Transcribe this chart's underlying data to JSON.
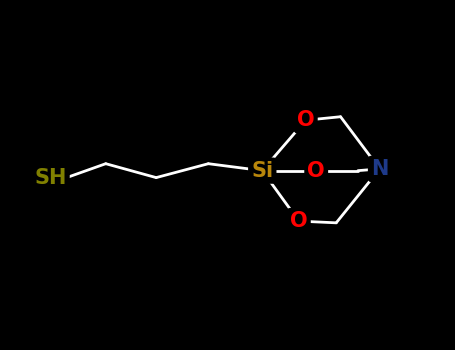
{
  "background_color": "#000000",
  "si_color": "#B8860B",
  "o_color": "#FF0000",
  "n_color": "#1E3A8A",
  "s_color": "#808000",
  "bond_color": "#FFFFFF",
  "fig_width": 4.55,
  "fig_height": 3.5,
  "dpi": 100,
  "label_fontsize": 15,
  "si": [
    0.0,
    0.0
  ],
  "o1": [
    0.5,
    0.58
  ],
  "o2": [
    0.62,
    0.0
  ],
  "o3": [
    0.42,
    -0.58
  ],
  "c1_o1": [
    0.9,
    0.62
  ],
  "c1_o2": [
    1.1,
    0.0
  ],
  "c1_o3": [
    0.85,
    -0.6
  ],
  "n": [
    1.35,
    0.02
  ],
  "chain_c1": [
    -0.62,
    0.08
  ],
  "chain_c2": [
    -1.22,
    -0.08
  ],
  "chain_c3": [
    -1.8,
    0.08
  ],
  "sh": [
    -2.25,
    -0.08
  ],
  "xlim": [
    -3.0,
    2.2
  ],
  "ylim": [
    -1.2,
    1.1
  ]
}
